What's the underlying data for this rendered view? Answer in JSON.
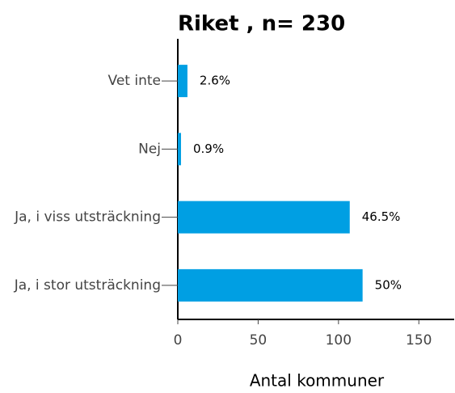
{
  "chart_data": {
    "type": "barh",
    "title": "Riket , n= 230",
    "xlabel": "Antal kommuner",
    "categories": [
      "Vet inte",
      "Nej",
      "Ja, i viss utsträckning",
      "Ja, i stor utsträckning"
    ],
    "values": [
      6,
      2,
      107,
      115
    ],
    "value_labels": [
      "2.6%",
      "0.9%",
      "46.5%",
      "50%"
    ],
    "color": "#009fe3",
    "xlim": [
      0,
      172
    ],
    "xticks": [
      0,
      50,
      100,
      150
    ],
    "grid": false
  }
}
